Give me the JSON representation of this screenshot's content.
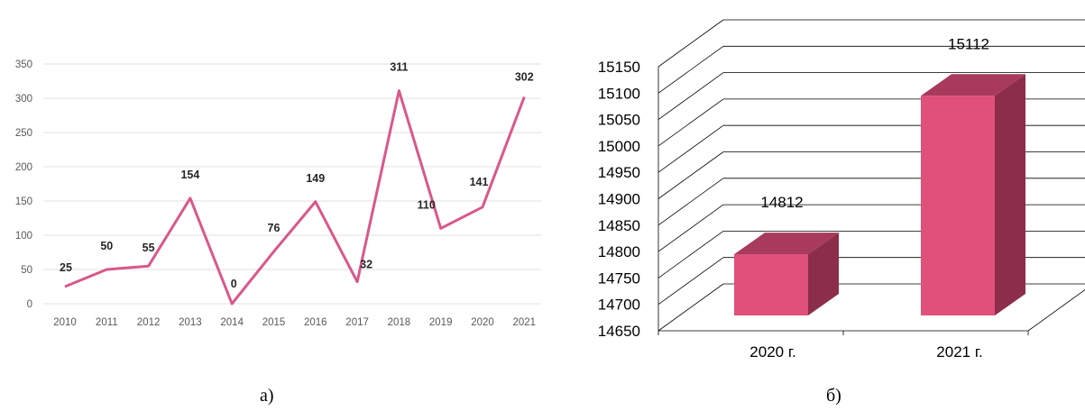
{
  "captions": {
    "a": "a)",
    "b": "б)"
  },
  "chart_data": [
    {
      "type": "line",
      "x": [
        "2010",
        "2011",
        "2012",
        "2013",
        "2014",
        "2015",
        "2016",
        "2017",
        "2018",
        "2019",
        "2020",
        "2021"
      ],
      "series": [
        {
          "values": [
            25,
            50,
            55,
            154,
            0,
            76,
            149,
            32,
            311,
            110,
            141,
            302
          ]
        }
      ],
      "y_ticks": [
        0,
        50,
        100,
        150,
        200,
        250,
        300,
        350
      ],
      "ylim": [
        0,
        350
      ],
      "grid": true,
      "legend": "none",
      "colors": {
        "line": "#d9588a",
        "grid": "#e2e2e2",
        "tick_text": "#595959",
        "label_text": "#262626"
      }
    },
    {
      "type": "bar",
      "style": "3d",
      "categories": [
        "2020 г.",
        "2021 г."
      ],
      "values": [
        14812,
        15112
      ],
      "y_ticks": [
        14650,
        14700,
        14750,
        14800,
        14850,
        14900,
        14950,
        15000,
        15050,
        15100,
        15150
      ],
      "ylim": [
        14650,
        15150
      ],
      "grid": true,
      "legend": "none",
      "colors": {
        "front": "#e0507a",
        "side": "#8c2e4a",
        "top": "#a83a5c",
        "grid": "#000000"
      }
    }
  ]
}
